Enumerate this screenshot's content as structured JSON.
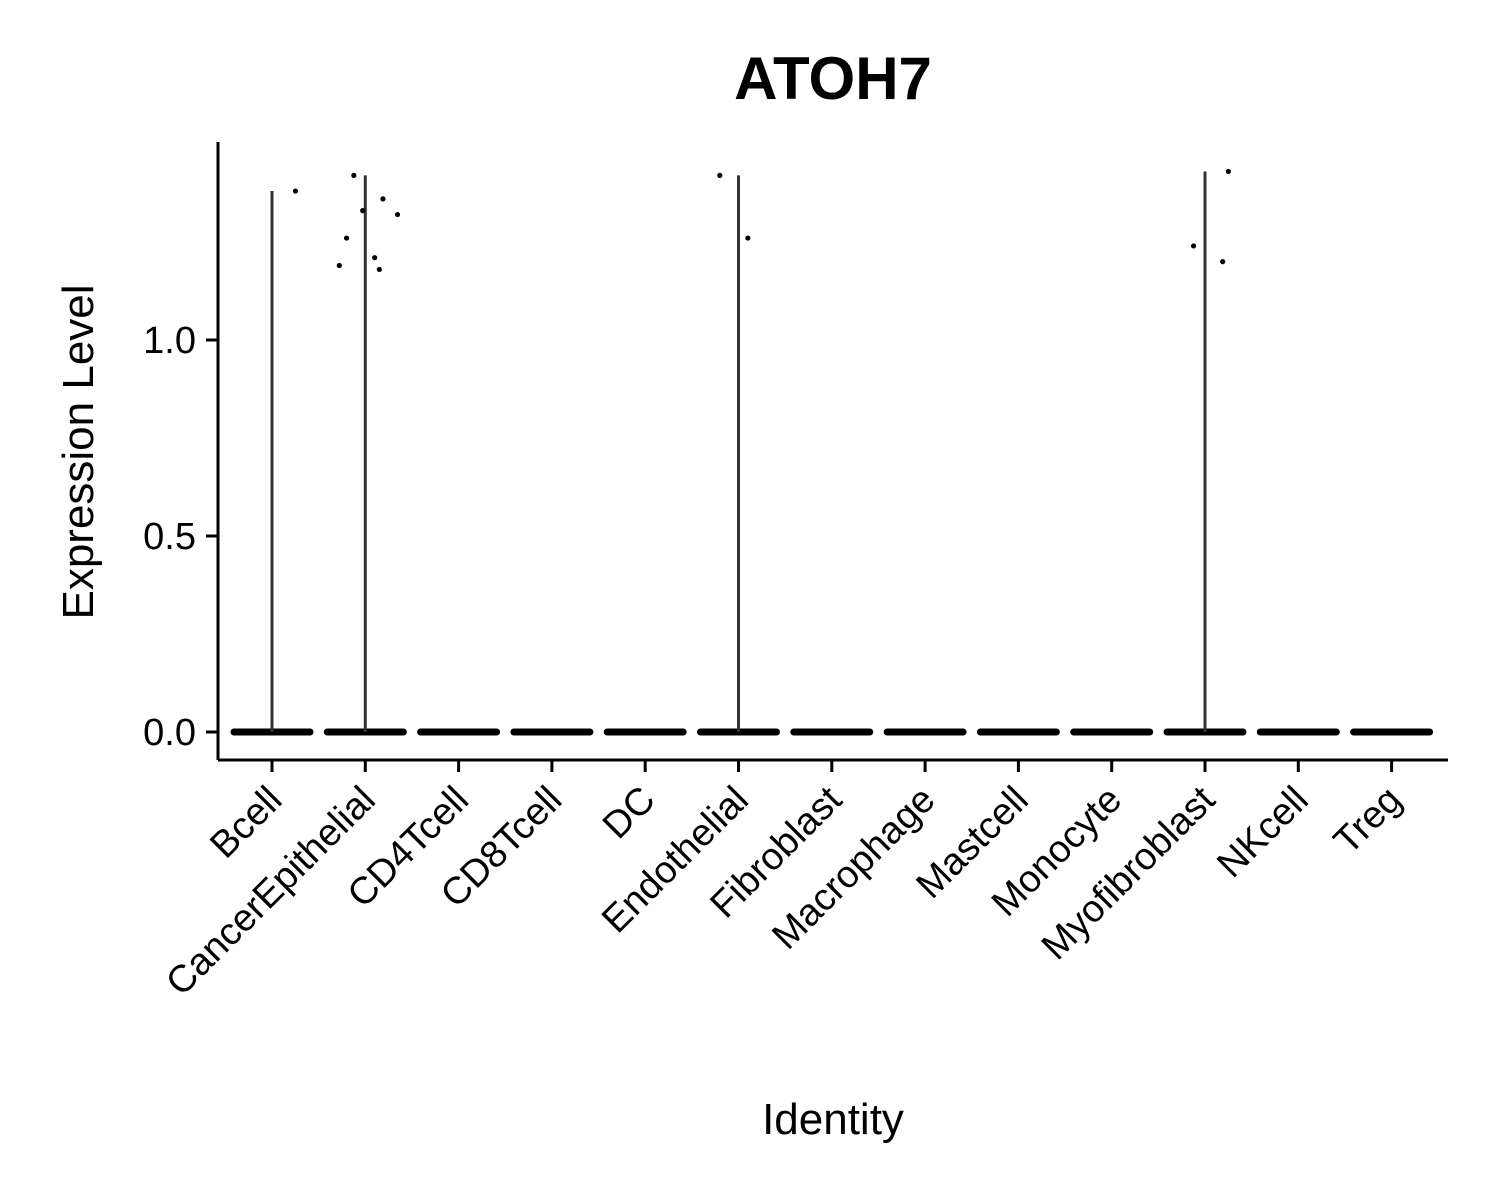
{
  "chart_data": {
    "type": "violin",
    "title": "ATOH7",
    "xlabel": "Identity",
    "ylabel": "Expression Level",
    "ylim": [
      -0.07,
      1.5
    ],
    "yticks": [
      0.0,
      0.5,
      1.0
    ],
    "ytick_labels": [
      "0.0",
      "0.5",
      "1.0"
    ],
    "grid": false,
    "legend": "none",
    "categories": [
      "Bcell",
      "CancerEpithelial",
      "CD4Tcell",
      "CD8Tcell",
      "DC",
      "Endothelial",
      "Fibroblast",
      "Macrophage",
      "Mastcell",
      "Monocyte",
      "Myofibroblast",
      "NKcell",
      "Treg"
    ],
    "violin_max": [
      1.38,
      1.42,
      0,
      0,
      0,
      1.42,
      0,
      0,
      0,
      0,
      1.43,
      0,
      0
    ],
    "points": [
      {
        "category": "Bcell",
        "values": [
          1.38
        ]
      },
      {
        "category": "CancerEpithelial",
        "values": [
          1.42,
          1.36,
          1.33,
          1.32,
          1.26,
          1.21,
          1.19,
          1.18
        ]
      },
      {
        "category": "Endothelial",
        "values": [
          1.42,
          1.26
        ]
      },
      {
        "category": "Myofibroblast",
        "values": [
          1.43,
          1.24,
          1.2
        ]
      }
    ],
    "colors": {
      "violin": "#333333",
      "points": "#000000",
      "axis": "#000000"
    }
  }
}
